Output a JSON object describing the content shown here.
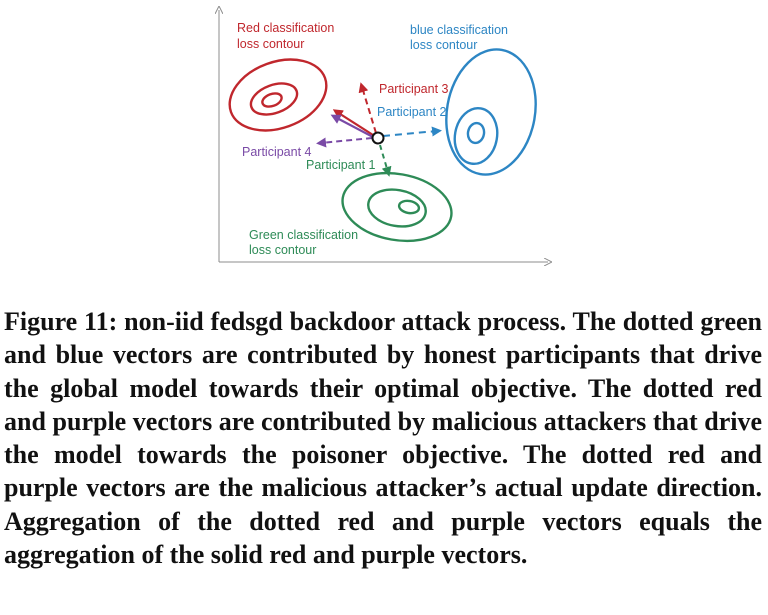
{
  "figure": {
    "labels": {
      "red_contour": [
        "Red classification",
        "loss contour"
      ],
      "blue_contour": [
        "blue classification",
        "loss contour"
      ],
      "green_contour": [
        "Green classification",
        "loss contour"
      ],
      "participant_1": "Participant 1",
      "participant_2": "Participant 2",
      "participant_3": "Participant 3",
      "participant_4": "Participant 4"
    },
    "colors": {
      "red": "#c0272d",
      "blue": "#2d86c4",
      "green": "#2e8b57",
      "purple": "#7a4aa6",
      "axis": "#8c8c8c"
    }
  },
  "caption": {
    "text": "Figure 11: non-iid fedsgd backdoor attack process. The dotted green and blue vectors are contributed by honest participants that drive the global model towards their optimal objective. The dotted red and purple vectors are contributed by malicious attackers that drive the model towards the poisoner objective. The dotted red and purple vectors are the malicious attacker’s actual update direction. Aggregation of the dotted red and purple vectors equals the aggregation of the solid red and purple vectors."
  }
}
